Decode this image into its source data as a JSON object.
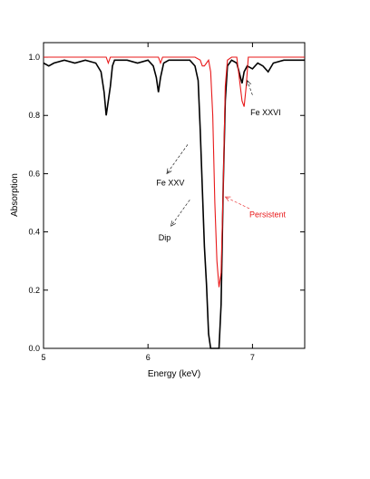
{
  "chart_data": {
    "type": "line",
    "xlabel": "Energy (keV)",
    "ylabel": "Absorption",
    "xlim": [
      5.0,
      7.5
    ],
    "ylim": [
      0.0,
      1.05
    ],
    "xticks": [
      5,
      6,
      7
    ],
    "xtick_labels": [
      "5",
      "6",
      "7"
    ],
    "yticks": [
      0.0,
      0.2,
      0.4,
      0.6,
      0.8,
      1.0
    ],
    "ytick_labels": [
      "0.0",
      "0.2",
      "0.4",
      "0.6",
      "0.8",
      "1.0"
    ],
    "grid": false,
    "series": [
      {
        "name": "Dip",
        "color": "#000000",
        "x": [
          5.0,
          5.05,
          5.1,
          5.2,
          5.3,
          5.4,
          5.5,
          5.55,
          5.58,
          5.6,
          5.62,
          5.64,
          5.66,
          5.68,
          5.7,
          5.8,
          5.9,
          6.0,
          6.05,
          6.08,
          6.1,
          6.12,
          6.15,
          6.2,
          6.3,
          6.4,
          6.45,
          6.48,
          6.5,
          6.52,
          6.54,
          6.56,
          6.58,
          6.6,
          6.62,
          6.64,
          6.66,
          6.68,
          6.7,
          6.72,
          6.74,
          6.76,
          6.8,
          6.85,
          6.9,
          6.92,
          6.95,
          7.0,
          7.05,
          7.1,
          7.15,
          7.2,
          7.3,
          7.4,
          7.5
        ],
        "y": [
          0.98,
          0.97,
          0.98,
          0.99,
          0.98,
          0.99,
          0.98,
          0.95,
          0.88,
          0.8,
          0.85,
          0.9,
          0.97,
          0.99,
          0.99,
          0.99,
          0.98,
          0.99,
          0.97,
          0.93,
          0.88,
          0.93,
          0.98,
          0.99,
          0.99,
          0.99,
          0.97,
          0.92,
          0.75,
          0.55,
          0.35,
          0.22,
          0.05,
          0.0,
          0.0,
          0.0,
          0.0,
          0.0,
          0.15,
          0.55,
          0.85,
          0.97,
          0.99,
          0.98,
          0.91,
          0.95,
          0.97,
          0.96,
          0.98,
          0.97,
          0.95,
          0.98,
          0.99,
          0.99,
          0.99
        ]
      },
      {
        "name": "Persistent",
        "color": "#e8191a",
        "x": [
          5.0,
          5.5,
          5.6,
          5.62,
          5.64,
          5.7,
          6.0,
          6.1,
          6.12,
          6.14,
          6.2,
          6.45,
          6.5,
          6.52,
          6.54,
          6.56,
          6.58,
          6.6,
          6.62,
          6.64,
          6.66,
          6.68,
          6.7,
          6.72,
          6.74,
          6.76,
          6.8,
          6.85,
          6.9,
          6.92,
          6.94,
          6.96,
          7.0,
          7.1,
          7.3,
          7.5
        ],
        "y": [
          1.0,
          1.0,
          1.0,
          0.98,
          1.0,
          1.0,
          1.0,
          1.0,
          0.98,
          1.0,
          1.0,
          1.0,
          0.99,
          0.97,
          0.97,
          0.98,
          0.99,
          0.95,
          0.8,
          0.5,
          0.3,
          0.21,
          0.26,
          0.55,
          0.9,
          0.99,
          1.0,
          1.0,
          0.85,
          0.83,
          0.9,
          1.0,
          1.0,
          1.0,
          1.0,
          1.0
        ]
      }
    ],
    "annotations": [
      {
        "text": "Fe XXVI",
        "x": 6.98,
        "y": 0.8,
        "color": "#000000",
        "arrow_from": [
          7.0,
          0.87
        ],
        "arrow_to": [
          6.95,
          0.92
        ]
      },
      {
        "text": "Fe XXV",
        "x": 6.08,
        "y": 0.56,
        "color": "#000000",
        "arrow_from": [
          6.38,
          0.7
        ],
        "arrow_to": [
          6.18,
          0.6
        ]
      },
      {
        "text": "Persistent",
        "x": 6.97,
        "y": 0.45,
        "color": "#e8191a",
        "arrow_from": [
          6.97,
          0.48
        ],
        "arrow_to": [
          6.74,
          0.52
        ]
      },
      {
        "text": "Dip",
        "x": 6.1,
        "y": 0.37,
        "color": "#000000",
        "arrow_from": [
          6.4,
          0.51
        ],
        "arrow_to": [
          6.22,
          0.42
        ]
      }
    ]
  }
}
